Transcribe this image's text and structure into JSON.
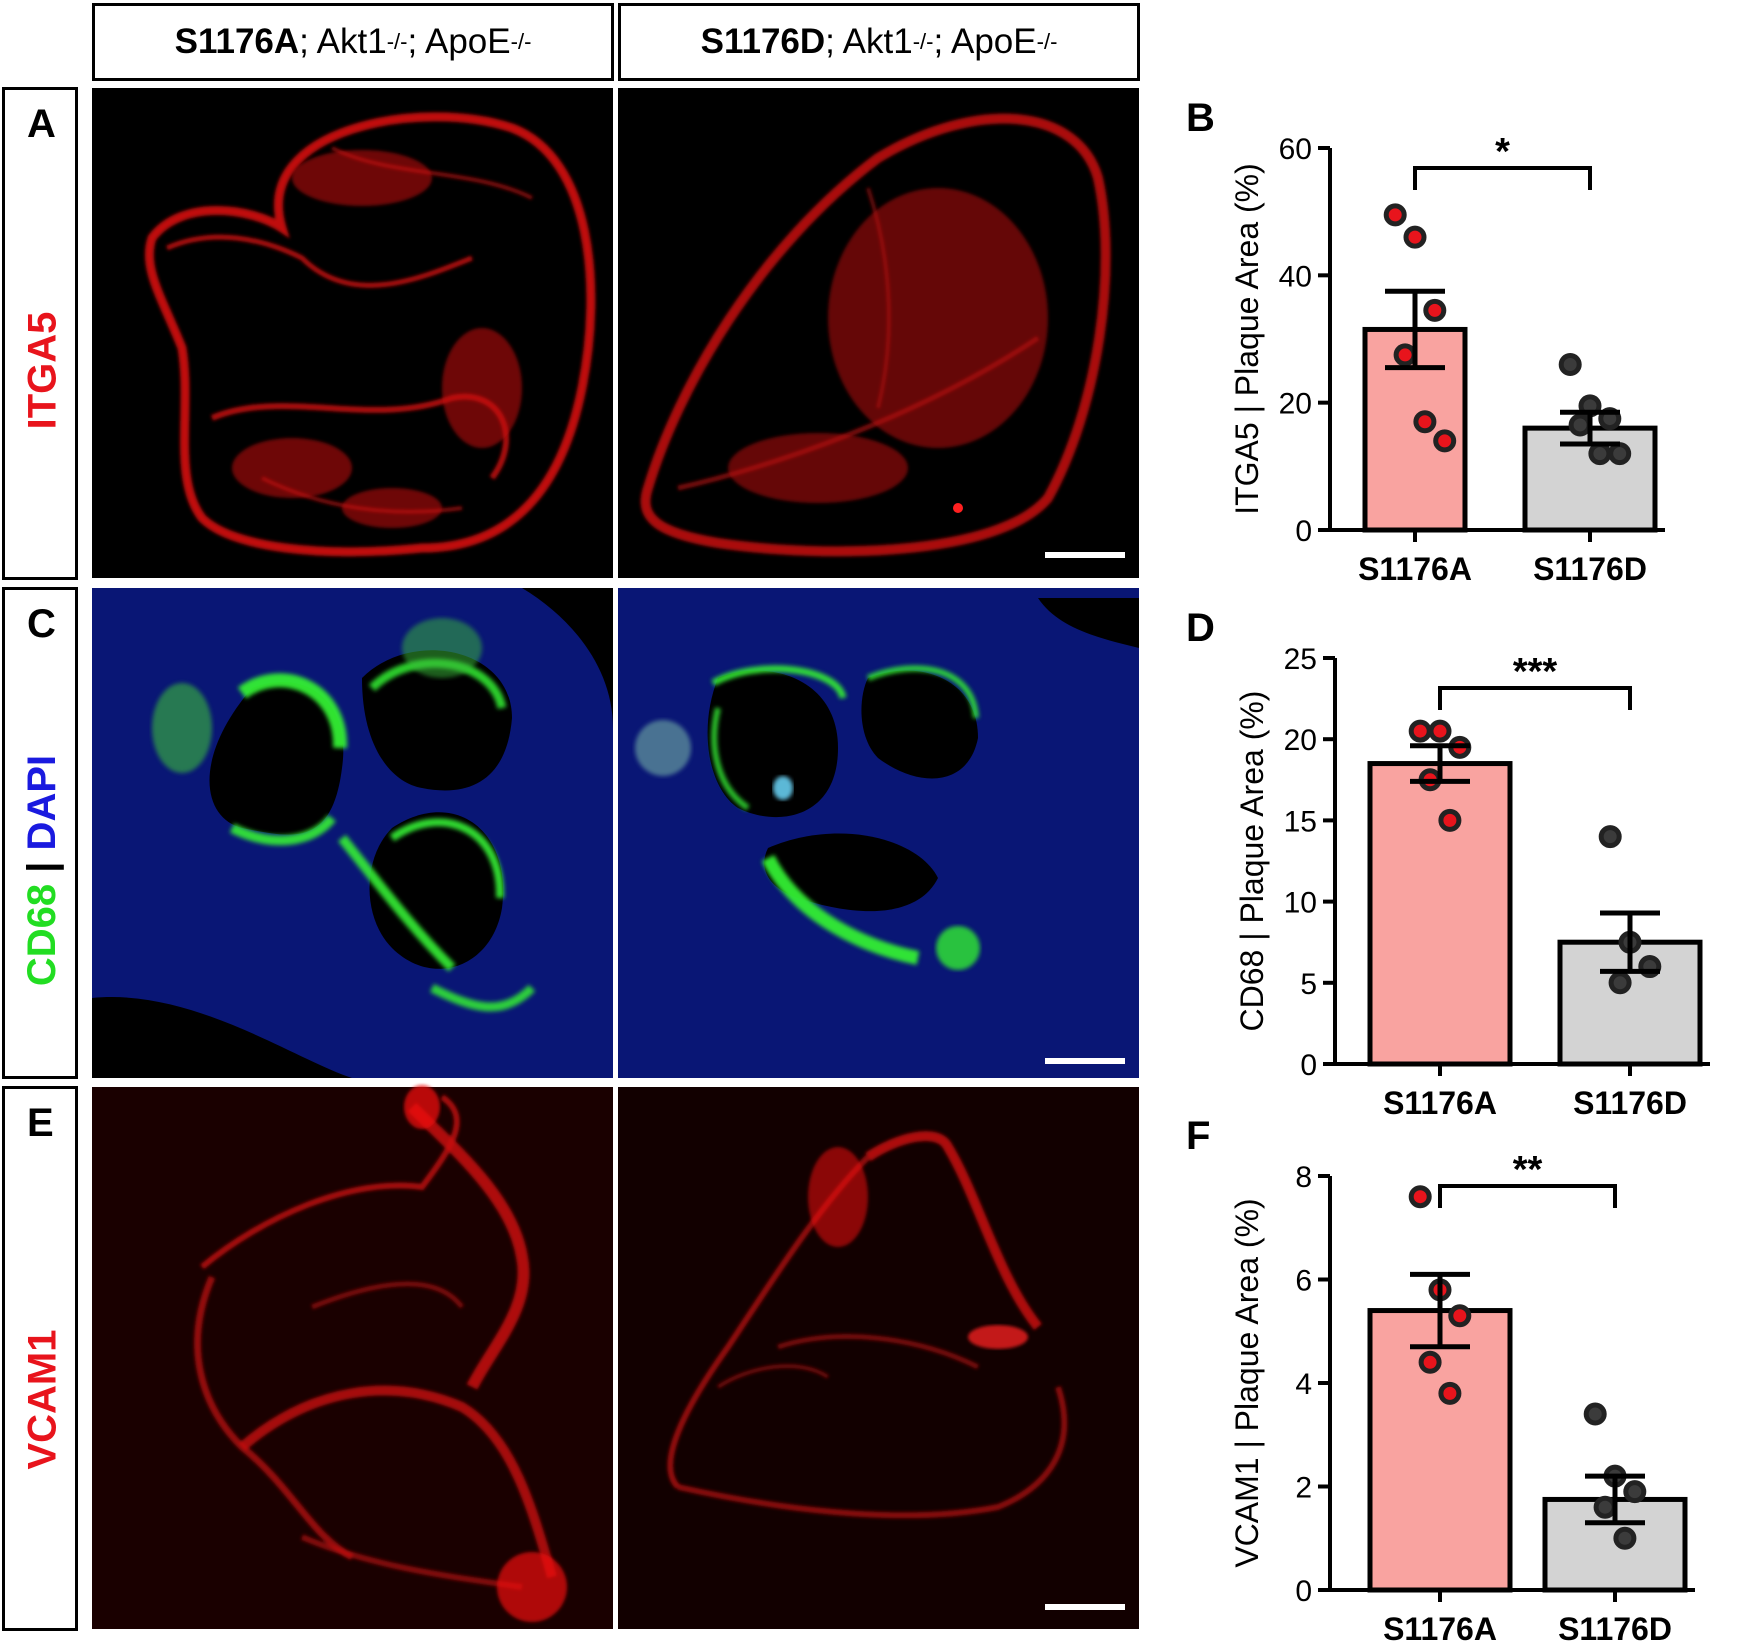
{
  "figure": {
    "columns": [
      {
        "bold": "S1176A",
        "rest_a": "; Akt1",
        "sup1": "-/-",
        "rest_b": "; ApoE",
        "sup2": "-/-"
      },
      {
        "bold": "S1176D",
        "rest_a": "; Akt1",
        "sup1": "-/-",
        "rest_b": "; ApoE",
        "sup2": "-/-"
      }
    ],
    "rows": [
      {
        "letter": "A",
        "marker": "ITGA5",
        "marker_color": "#e8141c"
      },
      {
        "letter": "C",
        "marker_a": "CD68",
        "marker_sep": " | ",
        "marker_b": "DAPI",
        "color_a": "#22dd22",
        "color_b": "#1a1adf"
      },
      {
        "letter": "E",
        "marker": "VCAM1",
        "marker_color": "#e8141c"
      }
    ]
  },
  "colors": {
    "bar_a": "#f9a3a0",
    "bar_b": "#d3d3d3",
    "point_a": "#e8141c",
    "point_b": "#3b3b3b",
    "red_stain": "#d81010",
    "green_stain": "#33ee33",
    "blue_stain": "#1030d0"
  },
  "chart_data": [
    {
      "panel": "B",
      "type": "bar",
      "ylabel": "ITGA5 | Plaque Area (%)",
      "ylim": [
        0,
        60
      ],
      "yticks": [
        0,
        20,
        40,
        60
      ],
      "categories": [
        "S1176A",
        "S1176D"
      ],
      "values": [
        31.5,
        16
      ],
      "sem": [
        6,
        2.5
      ],
      "points": [
        [
          49.5,
          46,
          34.5,
          27.5,
          17,
          14
        ],
        [
          26,
          19.5,
          17.5,
          16.5,
          12,
          12
        ]
      ],
      "significance": "*"
    },
    {
      "panel": "D",
      "type": "bar",
      "ylabel": "CD68 | Plaque Area (%)",
      "ylim": [
        0,
        25
      ],
      "yticks": [
        0,
        5,
        10,
        15,
        20,
        25
      ],
      "categories": [
        "S1176A",
        "S1176D"
      ],
      "values": [
        18.5,
        7.5
      ],
      "sem": [
        1.1,
        1.8
      ],
      "points": [
        [
          20.5,
          20.5,
          19.5,
          17.5,
          15
        ],
        [
          14,
          7.5,
          6,
          5
        ]
      ],
      "significance": "***"
    },
    {
      "panel": "F",
      "type": "bar",
      "ylabel": "VCAM1 | Plaque Area (%)",
      "ylim": [
        0,
        8
      ],
      "yticks": [
        0,
        2,
        4,
        6,
        8
      ],
      "categories": [
        "S1176A",
        "S1176D"
      ],
      "values": [
        5.4,
        1.75
      ],
      "sem": [
        0.7,
        0.45
      ],
      "points": [
        [
          7.6,
          5.8,
          5.3,
          4.4,
          3.8
        ],
        [
          3.4,
          2.2,
          1.9,
          1.6,
          1
        ]
      ],
      "significance": "**"
    }
  ]
}
